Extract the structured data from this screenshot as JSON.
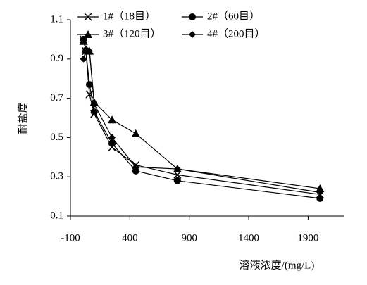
{
  "chart_data": {
    "type": "line",
    "x_label": "溶液浓度/(mg/L)",
    "y_label": "耐盐度",
    "x": [
      10,
      30,
      60,
      100,
      250,
      450,
      800,
      2000
    ],
    "series": [
      {
        "name": "1#（18目）",
        "color": "#000000",
        "marker": "x",
        "values": [
          1.0,
          0.94,
          0.72,
          0.62,
          0.45,
          0.36,
          0.31,
          0.21
        ]
      },
      {
        "name": "2#（60目）",
        "color": "#000000",
        "marker": "circle",
        "values": [
          1.0,
          0.94,
          0.77,
          0.63,
          0.47,
          0.33,
          0.28,
          0.19
        ]
      },
      {
        "name": "3#（120目）",
        "color": "#000000",
        "marker": "triangle",
        "values": [
          0.99,
          0.95,
          0.94,
          0.68,
          0.59,
          0.52,
          0.34,
          0.24
        ]
      },
      {
        "name": "4#（200目）",
        "color": "#000000",
        "marker": "diamond",
        "values": [
          0.9,
          0.95,
          0.94,
          0.67,
          0.5,
          0.35,
          0.34,
          0.22
        ]
      }
    ],
    "xlim": [
      -100,
      2200
    ],
    "xticks": [
      -100,
      400,
      900,
      1400,
      1900
    ],
    "ylim": [
      0.1,
      1.1
    ],
    "yticks": [
      0.1,
      0.3,
      0.5,
      0.7,
      0.9,
      1.1
    ],
    "grid": false,
    "legend": "top"
  }
}
